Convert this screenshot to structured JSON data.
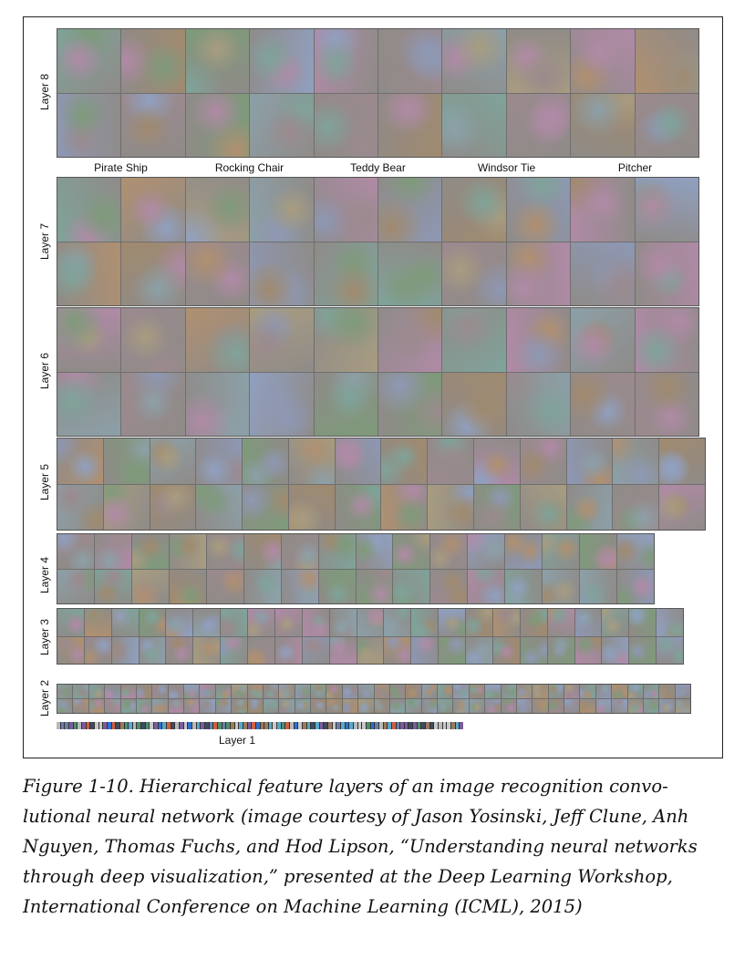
{
  "figure": {
    "layers": [
      {
        "key": "layer8",
        "label": "Layer 8"
      },
      {
        "key": "layer7",
        "label": "Layer 7"
      },
      {
        "key": "layer6",
        "label": "Layer 6"
      },
      {
        "key": "layer5",
        "label": "Layer 5"
      },
      {
        "key": "layer4",
        "label": "Layer 4"
      },
      {
        "key": "layer3",
        "label": "Layer 3"
      },
      {
        "key": "layer2",
        "label": "Layer 2"
      },
      {
        "key": "layer1",
        "label": "Layer 1"
      }
    ],
    "class_names": [
      "Pirate Ship",
      "Rocking Chair",
      "Teddy Bear",
      "Windsor Tie",
      "Pitcher"
    ],
    "palette": [
      "#9b8a8e",
      "#7fa39a",
      "#a08a6e",
      "#8e98b4",
      "#b08aa6",
      "#7e9a7a",
      "#a89c80",
      "#8ca0a8",
      "#b09070",
      "#90a0c0"
    ]
  },
  "caption": {
    "text": "Figure 1-10. Hierarchical feature layers of an image recognition convo­lutional neural network (image courtesy of Jason Yosinski, Jeff Clune, Anh Nguyen, Thomas Fuchs, and Hod Lipson, “Understanding neural networks through deep visualization,” presented at the Deep Learning Workshop, International Conference on Machine Learning (ICML), 2015)"
  }
}
